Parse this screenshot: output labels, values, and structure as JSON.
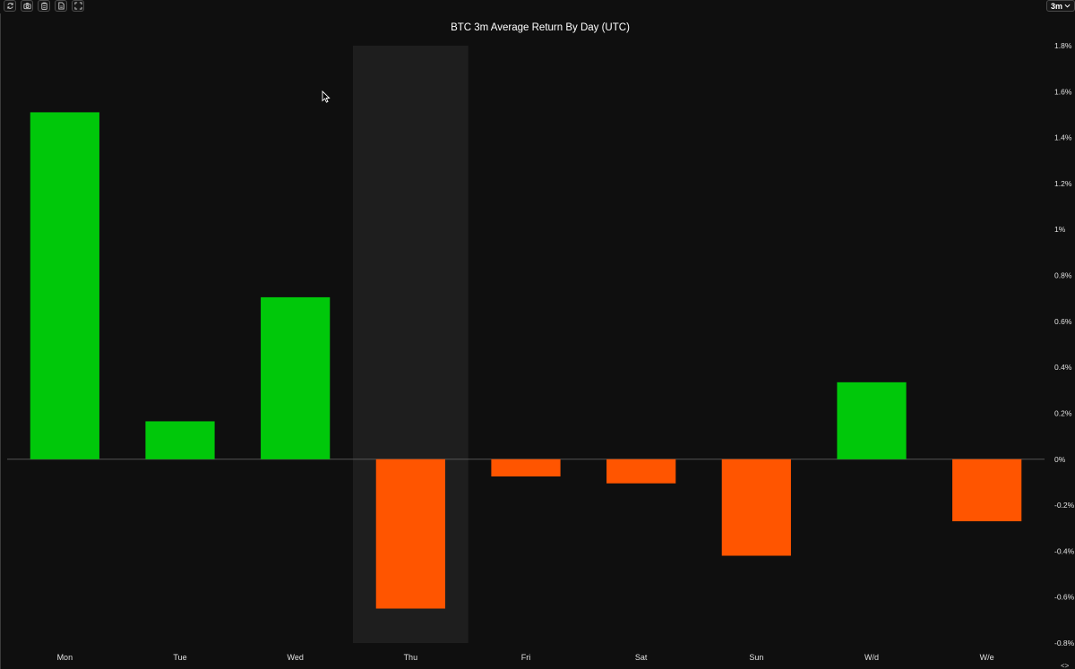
{
  "toolbar": {
    "buttons": [
      {
        "icon": "refresh-icon"
      },
      {
        "icon": "camera-icon"
      },
      {
        "icon": "clipboard-icon"
      },
      {
        "icon": "csv-file-icon"
      },
      {
        "icon": "fullscreen-icon"
      }
    ],
    "range_selected": "3m"
  },
  "colors": {
    "background": "#0f0f0f",
    "positive": "#00c80a",
    "negative": "#ff5500",
    "highlight": "#1e1e1e",
    "zero_line": "#555555"
  },
  "chart_data": {
    "type": "bar",
    "title": "BTC 3m Average Return By Day (UTC)",
    "categories": [
      "Mon",
      "Tue",
      "Wed",
      "Thu",
      "Fri",
      "Sat",
      "Sun",
      "W/d",
      "W/e"
    ],
    "values": [
      1.51,
      0.165,
      0.705,
      -0.65,
      -0.075,
      -0.105,
      -0.42,
      0.335,
      -0.27
    ],
    "highlighted_category": "Thu",
    "ylim": [
      -0.8,
      1.8
    ],
    "yticks": [
      1.8,
      1.6,
      1.4,
      1.2,
      1,
      0.8,
      0.6,
      0.4,
      0.2,
      0,
      -0.2,
      -0.4,
      -0.6,
      -0.8
    ],
    "ytick_labels": [
      "1.8%",
      "1.6%",
      "1.4%",
      "1.2%",
      "1%",
      "0.8%",
      "0.6%",
      "0.4%",
      "0.2%",
      "0%",
      "-0.2%",
      "-0.4%",
      "-0.6%",
      "-0.8%"
    ],
    "y_axis_side": "right",
    "grid": false,
    "legend": "none"
  }
}
